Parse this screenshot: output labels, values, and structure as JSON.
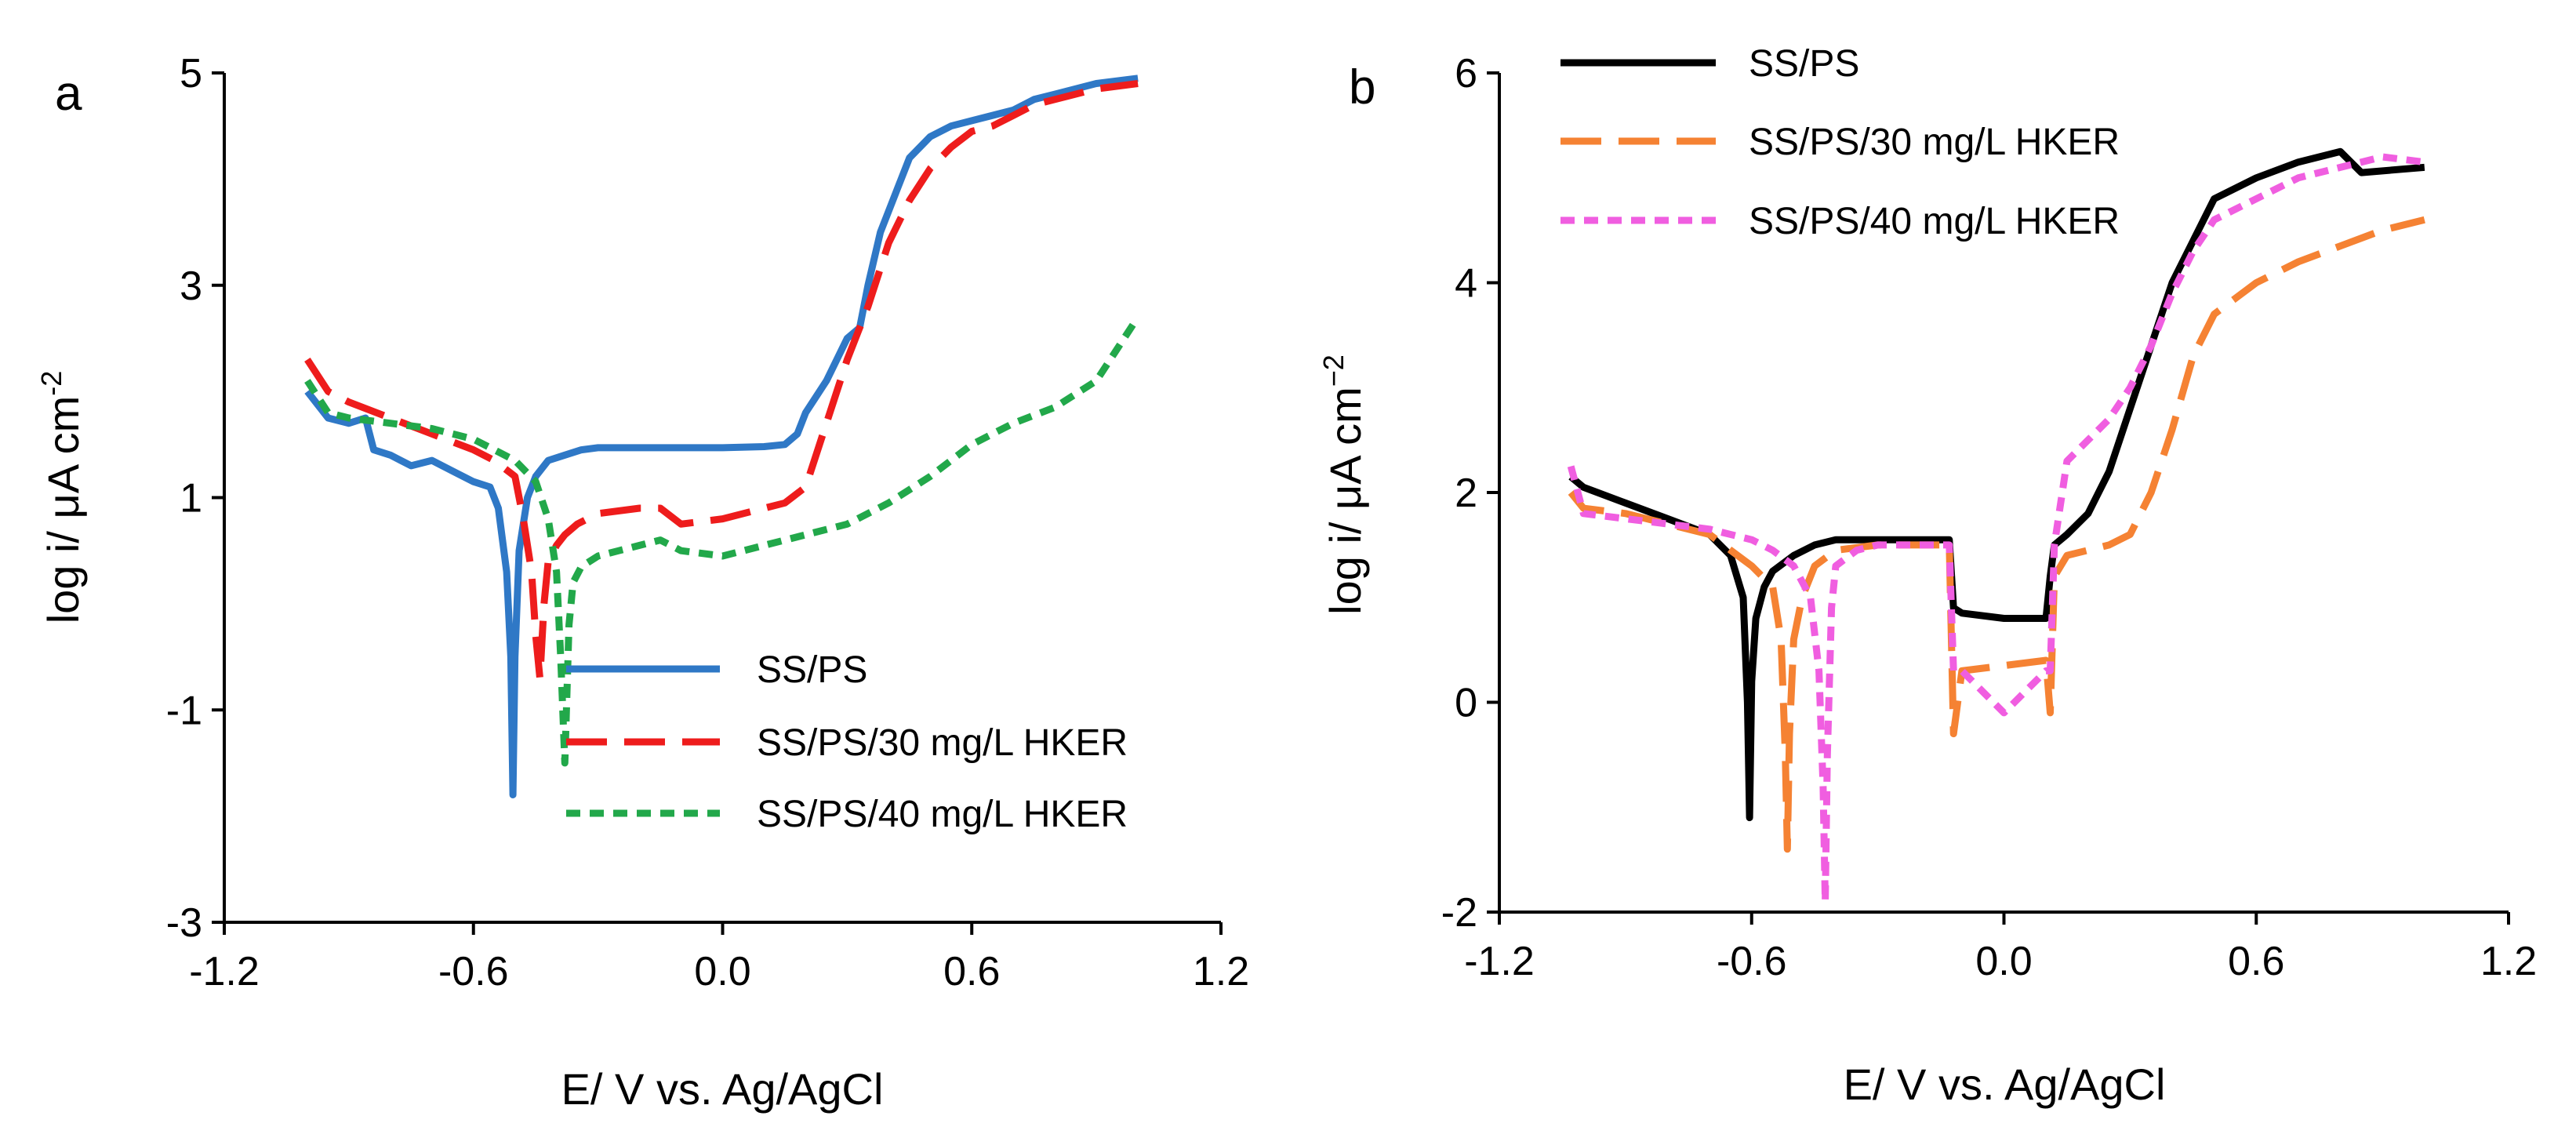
{
  "chart_data": [
    {
      "panel_label": "a",
      "type": "line",
      "xlabel": "E/ V vs. Ag/AgCl",
      "ylabel_main": "log i/ μA cm",
      "ylabel_sup": "-2",
      "xlim": [
        -1.2,
        1.2
      ],
      "ylim": [
        -3,
        5
      ],
      "xticks": [
        "-1.2",
        "-0.6",
        "0.0",
        "0.6",
        "1.2"
      ],
      "yticks": [
        "-3",
        "-1",
        "1",
        "3",
        "5"
      ],
      "legend_position": "bottom-right",
      "series": [
        {
          "name": "SS/PS",
          "color": "#2f78c6",
          "dash": "solid",
          "x": [
            -1.0,
            -0.95,
            -0.9,
            -0.86,
            -0.84,
            -0.8,
            -0.75,
            -0.7,
            -0.65,
            -0.6,
            -0.56,
            -0.54,
            -0.52,
            -0.51,
            -0.505,
            -0.5,
            -0.49,
            -0.47,
            -0.45,
            -0.42,
            -0.38,
            -0.34,
            -0.3,
            -0.2,
            -0.1,
            0.0,
            0.1,
            0.15,
            0.18,
            0.2,
            0.25,
            0.3,
            0.33,
            0.35,
            0.38,
            0.42,
            0.45,
            0.5,
            0.55,
            0.6,
            0.7,
            0.75,
            0.8,
            0.9,
            1.0
          ],
          "y": [
            2.0,
            1.75,
            1.7,
            1.75,
            1.45,
            1.4,
            1.3,
            1.35,
            1.25,
            1.15,
            1.1,
            0.9,
            0.3,
            -0.5,
            -1.8,
            -0.5,
            0.5,
            1.0,
            1.2,
            1.35,
            1.4,
            1.45,
            1.47,
            1.47,
            1.47,
            1.47,
            1.48,
            1.5,
            1.6,
            1.8,
            2.1,
            2.5,
            2.6,
            3.0,
            3.5,
            3.9,
            4.2,
            4.4,
            4.5,
            4.55,
            4.65,
            4.75,
            4.8,
            4.9,
            4.95
          ]
        },
        {
          "name": "SS/PS/30 mg/L HKER",
          "color": "#ee1c1c",
          "dash": "long-dash",
          "x": [
            -1.0,
            -0.95,
            -0.9,
            -0.8,
            -0.7,
            -0.6,
            -0.55,
            -0.5,
            -0.48,
            -0.46,
            -0.45,
            -0.44,
            -0.43,
            -0.42,
            -0.4,
            -0.38,
            -0.35,
            -0.3,
            -0.2,
            -0.15,
            -0.1,
            0.0,
            0.1,
            0.15,
            0.2,
            0.25,
            0.3,
            0.35,
            0.4,
            0.45,
            0.5,
            0.55,
            0.6,
            0.65,
            0.7,
            0.75,
            0.8,
            0.9,
            1.0
          ],
          "y": [
            2.3,
            2.0,
            1.9,
            1.75,
            1.6,
            1.45,
            1.35,
            1.2,
            0.8,
            0.3,
            -0.3,
            -0.7,
            0.0,
            0.4,
            0.55,
            0.65,
            0.75,
            0.85,
            0.9,
            0.9,
            0.75,
            0.8,
            0.9,
            0.95,
            1.1,
            1.7,
            2.3,
            2.8,
            3.4,
            3.8,
            4.1,
            4.3,
            4.45,
            4.5,
            4.6,
            4.7,
            4.75,
            4.85,
            4.9
          ]
        },
        {
          "name": "SS/PS/40 mg/L HKER",
          "color": "#22a84a",
          "dash": "short-dash",
          "x": [
            -1.0,
            -0.95,
            -0.9,
            -0.8,
            -0.7,
            -0.6,
            -0.5,
            -0.45,
            -0.42,
            -0.4,
            -0.39,
            -0.38,
            -0.37,
            -0.36,
            -0.34,
            -0.3,
            -0.25,
            -0.2,
            -0.15,
            -0.1,
            0.0,
            0.1,
            0.2,
            0.3,
            0.4,
            0.5,
            0.6,
            0.7,
            0.8,
            0.9,
            0.95,
            1.0
          ],
          "y": [
            2.1,
            1.8,
            1.75,
            1.7,
            1.65,
            1.55,
            1.35,
            1.15,
            0.8,
            0.3,
            -0.5,
            -1.5,
            -0.2,
            0.2,
            0.35,
            0.45,
            0.5,
            0.55,
            0.6,
            0.5,
            0.45,
            0.55,
            0.65,
            0.75,
            0.95,
            1.2,
            1.5,
            1.7,
            1.85,
            2.1,
            2.4,
            2.7
          ]
        }
      ]
    },
    {
      "panel_label": "b",
      "type": "line",
      "xlabel": "E/ V vs. Ag/AgCl",
      "ylabel_main": "log i/ μA cm",
      "ylabel_sup": "−2",
      "xlim": [
        -1.2,
        1.2
      ],
      "ylim": [
        -2,
        6
      ],
      "xticks": [
        "-1.2",
        "-0.6",
        "0.0",
        "0.6",
        "1.2"
      ],
      "yticks": [
        "-2",
        "0",
        "2",
        "4",
        "6"
      ],
      "legend_position": "top-left",
      "series": [
        {
          "name": "SS/PS",
          "color": "#000000",
          "dash": "solid",
          "x": [
            -1.03,
            -1.0,
            -0.9,
            -0.8,
            -0.7,
            -0.65,
            -0.62,
            -0.61,
            -0.605,
            -0.6,
            -0.59,
            -0.57,
            -0.55,
            -0.5,
            -0.45,
            -0.4,
            -0.3,
            -0.2,
            -0.13,
            -0.12,
            -0.1,
            0.0,
            0.1,
            0.11,
            0.12,
            0.15,
            0.2,
            0.25,
            0.3,
            0.35,
            0.4,
            0.45,
            0.5,
            0.6,
            0.7,
            0.8,
            0.85,
            1.0
          ],
          "y": [
            2.15,
            2.05,
            1.9,
            1.75,
            1.6,
            1.4,
            1.0,
            0.0,
            -1.1,
            0.2,
            0.8,
            1.1,
            1.25,
            1.4,
            1.5,
            1.55,
            1.55,
            1.55,
            1.55,
            0.9,
            0.85,
            0.8,
            0.8,
            1.2,
            1.5,
            1.6,
            1.8,
            2.2,
            2.8,
            3.4,
            4.0,
            4.4,
            4.8,
            5.0,
            5.15,
            5.25,
            5.05,
            5.1
          ]
        },
        {
          "name": "SS/PS/30 mg/L HKER",
          "color": "#f58233",
          "dash": "long-dash",
          "x": [
            -1.03,
            -1.0,
            -0.9,
            -0.8,
            -0.7,
            -0.65,
            -0.6,
            -0.55,
            -0.53,
            -0.52,
            -0.515,
            -0.51,
            -0.5,
            -0.48,
            -0.45,
            -0.4,
            -0.3,
            -0.2,
            -0.13,
            -0.12,
            -0.1,
            0.0,
            0.1,
            0.11,
            0.12,
            0.15,
            0.2,
            0.25,
            0.3,
            0.35,
            0.4,
            0.45,
            0.5,
            0.6,
            0.7,
            0.8,
            0.9,
            1.0
          ],
          "y": [
            2.0,
            1.85,
            1.8,
            1.7,
            1.6,
            1.45,
            1.3,
            1.1,
            0.6,
            -0.5,
            -1.4,
            -0.3,
            0.6,
            1.0,
            1.3,
            1.45,
            1.5,
            1.5,
            1.5,
            -0.3,
            0.3,
            0.35,
            0.4,
            -0.1,
            1.2,
            1.4,
            1.45,
            1.5,
            1.6,
            2.0,
            2.6,
            3.3,
            3.7,
            4.0,
            4.2,
            4.35,
            4.5,
            4.6
          ]
        },
        {
          "name": "SS/PS/40 mg/L HKER",
          "color": "#f05ee0",
          "dash": "short-dash",
          "x": [
            -1.03,
            -1.0,
            -0.9,
            -0.8,
            -0.7,
            -0.6,
            -0.55,
            -0.5,
            -0.46,
            -0.44,
            -0.43,
            -0.425,
            -0.42,
            -0.41,
            -0.4,
            -0.35,
            -0.3,
            -0.2,
            -0.13,
            -0.12,
            -0.1,
            0.0,
            0.1,
            0.11,
            0.12,
            0.15,
            0.2,
            0.25,
            0.3,
            0.35,
            0.4,
            0.45,
            0.5,
            0.6,
            0.7,
            0.8,
            0.9,
            1.0
          ],
          "y": [
            2.25,
            1.8,
            1.75,
            1.7,
            1.65,
            1.55,
            1.45,
            1.3,
            1.0,
            0.3,
            -0.8,
            -1.9,
            -0.5,
            0.9,
            1.3,
            1.45,
            1.5,
            1.5,
            1.5,
            0.3,
            0.3,
            -0.1,
            0.3,
            0.3,
            1.5,
            2.3,
            2.5,
            2.7,
            3.0,
            3.4,
            3.9,
            4.3,
            4.6,
            4.8,
            5.0,
            5.1,
            5.2,
            5.15
          ]
        }
      ]
    }
  ]
}
